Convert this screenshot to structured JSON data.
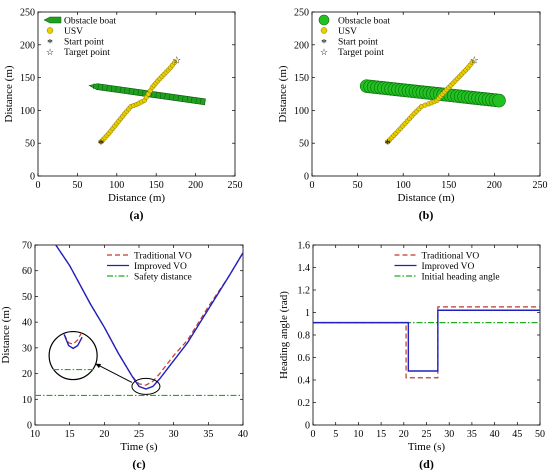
{
  "chart_data": [
    {
      "id": "a",
      "type": "line",
      "panel_label": "(a)",
      "xlabel": "Distance (m)",
      "ylabel": "Distance (m)",
      "xlim": [
        0,
        250
      ],
      "ylim": [
        0,
        250
      ],
      "xticks": [
        0,
        50,
        100,
        150,
        200,
        250
      ],
      "yticks": [
        0,
        50,
        100,
        150,
        200,
        250
      ],
      "legend": {
        "position": "top-left",
        "entries": [
          "Obstacle boat",
          "USV",
          "Start point",
          "Target point"
        ]
      },
      "series": [
        {
          "name": "Obstacle boat",
          "color": "#1fa01f",
          "head": [
            65,
            138
          ],
          "tail": [
            212,
            113
          ]
        },
        {
          "name": "USV",
          "color": "#e8d000",
          "x": [
            80,
            90,
            100,
            110,
            118,
            125,
            135,
            140,
            145,
            152,
            160,
            168,
            176
          ],
          "y": [
            52,
            65,
            80,
            95,
            106,
            109,
            115,
            125,
            135,
            145,
            155,
            165,
            177
          ]
        }
      ],
      "start_point": [
        80,
        52
      ],
      "target_point": [
        176,
        177
      ]
    },
    {
      "id": "b",
      "type": "line",
      "panel_label": "(b)",
      "xlabel": "Distance (m)",
      "ylabel": "Distance (m)",
      "xlim": [
        0,
        250
      ],
      "ylim": [
        0,
        250
      ],
      "xticks": [
        0,
        50,
        100,
        150,
        200,
        250
      ],
      "yticks": [
        0,
        50,
        100,
        150,
        200,
        250
      ],
      "legend": {
        "position": "top-left",
        "entries": [
          "Obstacle boat",
          "USV",
          "Start point",
          "Target point"
        ]
      },
      "series": [
        {
          "name": "Obstacle boat",
          "color": "#22c022",
          "head": [
            60,
            137
          ],
          "tail": [
            205,
            115
          ]
        },
        {
          "name": "USV",
          "color": "#e8d000",
          "x": [
            83,
            92,
            102,
            112,
            120,
            128,
            137,
            143,
            150,
            157,
            164,
            171,
            178
          ],
          "y": [
            52,
            65,
            80,
            95,
            106,
            110,
            115,
            125,
            135,
            145,
            155,
            165,
            177
          ]
        }
      ],
      "start_point": [
        83,
        52
      ],
      "target_point": [
        178,
        177
      ]
    },
    {
      "id": "c",
      "type": "line",
      "panel_label": "(c)",
      "xlabel": "Time (s)",
      "ylabel": "Distance (m)",
      "xlim": [
        10,
        40
      ],
      "ylim": [
        0,
        70
      ],
      "xticks": [
        10,
        15,
        20,
        25,
        30,
        35,
        40
      ],
      "yticks": [
        0,
        10,
        20,
        30,
        40,
        50,
        60,
        70
      ],
      "legend": {
        "position": "top-right",
        "entries": [
          "Traditional VO",
          "Improved VO",
          "Safety distance"
        ]
      },
      "series": [
        {
          "name": "Traditional VO",
          "color": "#c0392b",
          "style": "dashed",
          "x": [
            13,
            15,
            18,
            20,
            22,
            24,
            25,
            26,
            27,
            28,
            30,
            32,
            35,
            38,
            40
          ],
          "y": [
            70,
            62,
            47,
            38,
            28,
            19,
            16,
            15.5,
            17,
            20,
            27,
            33,
            46,
            58,
            67
          ]
        },
        {
          "name": "Improved VO",
          "color": "#2020c0",
          "style": "solid",
          "x": [
            13,
            15,
            18,
            20,
            22,
            24,
            25,
            26,
            27,
            28,
            30,
            32,
            35,
            38,
            40
          ],
          "y": [
            70,
            62,
            47,
            38,
            28,
            19,
            15,
            14,
            15,
            18,
            25,
            32,
            45,
            58,
            67
          ]
        },
        {
          "name": "Safety distance",
          "color": "#22aa22",
          "style": "dashdot",
          "x": [
            10,
            40
          ],
          "y": [
            11.5,
            11.5
          ]
        }
      ],
      "annotation": {
        "type": "zoom-inset",
        "target": [
          26,
          15
        ],
        "inset_center": [
          15.5,
          27
        ]
      }
    },
    {
      "id": "d",
      "type": "line",
      "panel_label": "(d)",
      "xlabel": "Time (s)",
      "ylabel": "Heading angle  (rad)",
      "xlim": [
        0,
        50
      ],
      "ylim": [
        0,
        1.6
      ],
      "xticks": [
        0,
        5,
        10,
        15,
        20,
        25,
        30,
        35,
        40,
        45,
        50
      ],
      "yticks": [
        0,
        0.2,
        0.4,
        0.6,
        0.8,
        1,
        1.2,
        1.4,
        1.6
      ],
      "legend": {
        "position": "top-right",
        "entries": [
          "Traditional VO",
          "Improved VO",
          "Initial heading angle"
        ]
      },
      "series": [
        {
          "name": "Traditional VO",
          "color": "#c0392b",
          "style": "dashed",
          "x": [
            0,
            20.5,
            20.5,
            27.5,
            27.5,
            50
          ],
          "y": [
            0.91,
            0.91,
            0.42,
            0.42,
            1.05,
            1.05
          ]
        },
        {
          "name": "Improved VO",
          "color": "#2020c0",
          "style": "solid",
          "x": [
            0,
            21,
            21,
            27.5,
            27.5,
            50
          ],
          "y": [
            0.91,
            0.91,
            0.48,
            0.48,
            1.02,
            1.02
          ]
        },
        {
          "name": "Initial heading angle",
          "color": "#22aa22",
          "style": "dashdot",
          "x": [
            0,
            50
          ],
          "y": [
            0.91,
            0.91
          ]
        }
      ]
    }
  ]
}
